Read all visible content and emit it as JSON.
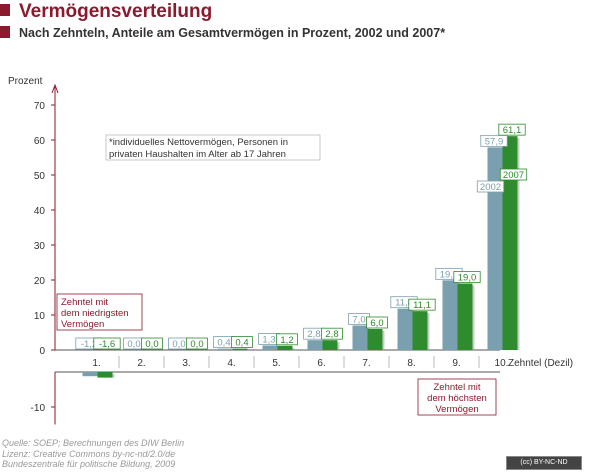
{
  "header": {
    "title": "Vermögensverteilung",
    "subtitle": "Nach Zehnteln, Anteile am Gesamtvermögen in Prozent, 2002 und 2007*"
  },
  "footnote_line1": "*individuelles Nettovermögen, Personen in",
  "footnote_line2": "privaten Haushalten im Alter ab 17 Jahren",
  "annotation_low": [
    "Zehntel mit",
    "dem niedrigsten",
    "Vermögen"
  ],
  "annotation_high": [
    "Zehntel mit",
    "dem höchsten",
    "Vermögen"
  ],
  "source_lines": [
    "Quelle: SOEP; Berechnungen des DIW Berlin",
    "Lizenz: Creative Commons  by-nc-nd/2.0/de",
    "Bundeszentrale für politische Bildung, 2009"
  ],
  "license_badge": "(cc) BY-NC-ND",
  "colors": {
    "title": "#8b1a2e",
    "series_2002": "#7a9fae",
    "series_2007": "#2e8b2e",
    "axis": "#8b1a2e",
    "annotation_border": "#8b1a2e"
  },
  "chart_data": {
    "type": "bar",
    "ylabel": "Prozent",
    "xlabel": "Zehntel (Dezil)",
    "ylim": [
      -15,
      70
    ],
    "yticks": [
      -10,
      0,
      10,
      20,
      30,
      40,
      50,
      60,
      70
    ],
    "categories": [
      "1.",
      "2.",
      "3.",
      "4.",
      "5.",
      "6.",
      "7.",
      "8.",
      "9.",
      "10."
    ],
    "series": [
      {
        "name": "2002",
        "values": [
          -1.2,
          0.0,
          0.0,
          0.4,
          1.3,
          2.8,
          7.0,
          11.8,
          19.9,
          57.9
        ],
        "labels": [
          "-1,2",
          "0,0",
          "0,0",
          "0,4",
          "1,3",
          "2,8",
          "7,0",
          "11,8",
          "19,9",
          "57,9"
        ]
      },
      {
        "name": "2007",
        "values": [
          -1.6,
          0.0,
          0.0,
          0.4,
          1.2,
          2.8,
          6.0,
          11.1,
          19.0,
          61.1
        ],
        "labels": [
          "-1,6",
          "0,0",
          "0,0",
          "0,4",
          "1,2",
          "2,8",
          "6,0",
          "11,1",
          "19,0",
          "61,1"
        ]
      }
    ],
    "grid": false,
    "legend": "inside tallest bars"
  }
}
